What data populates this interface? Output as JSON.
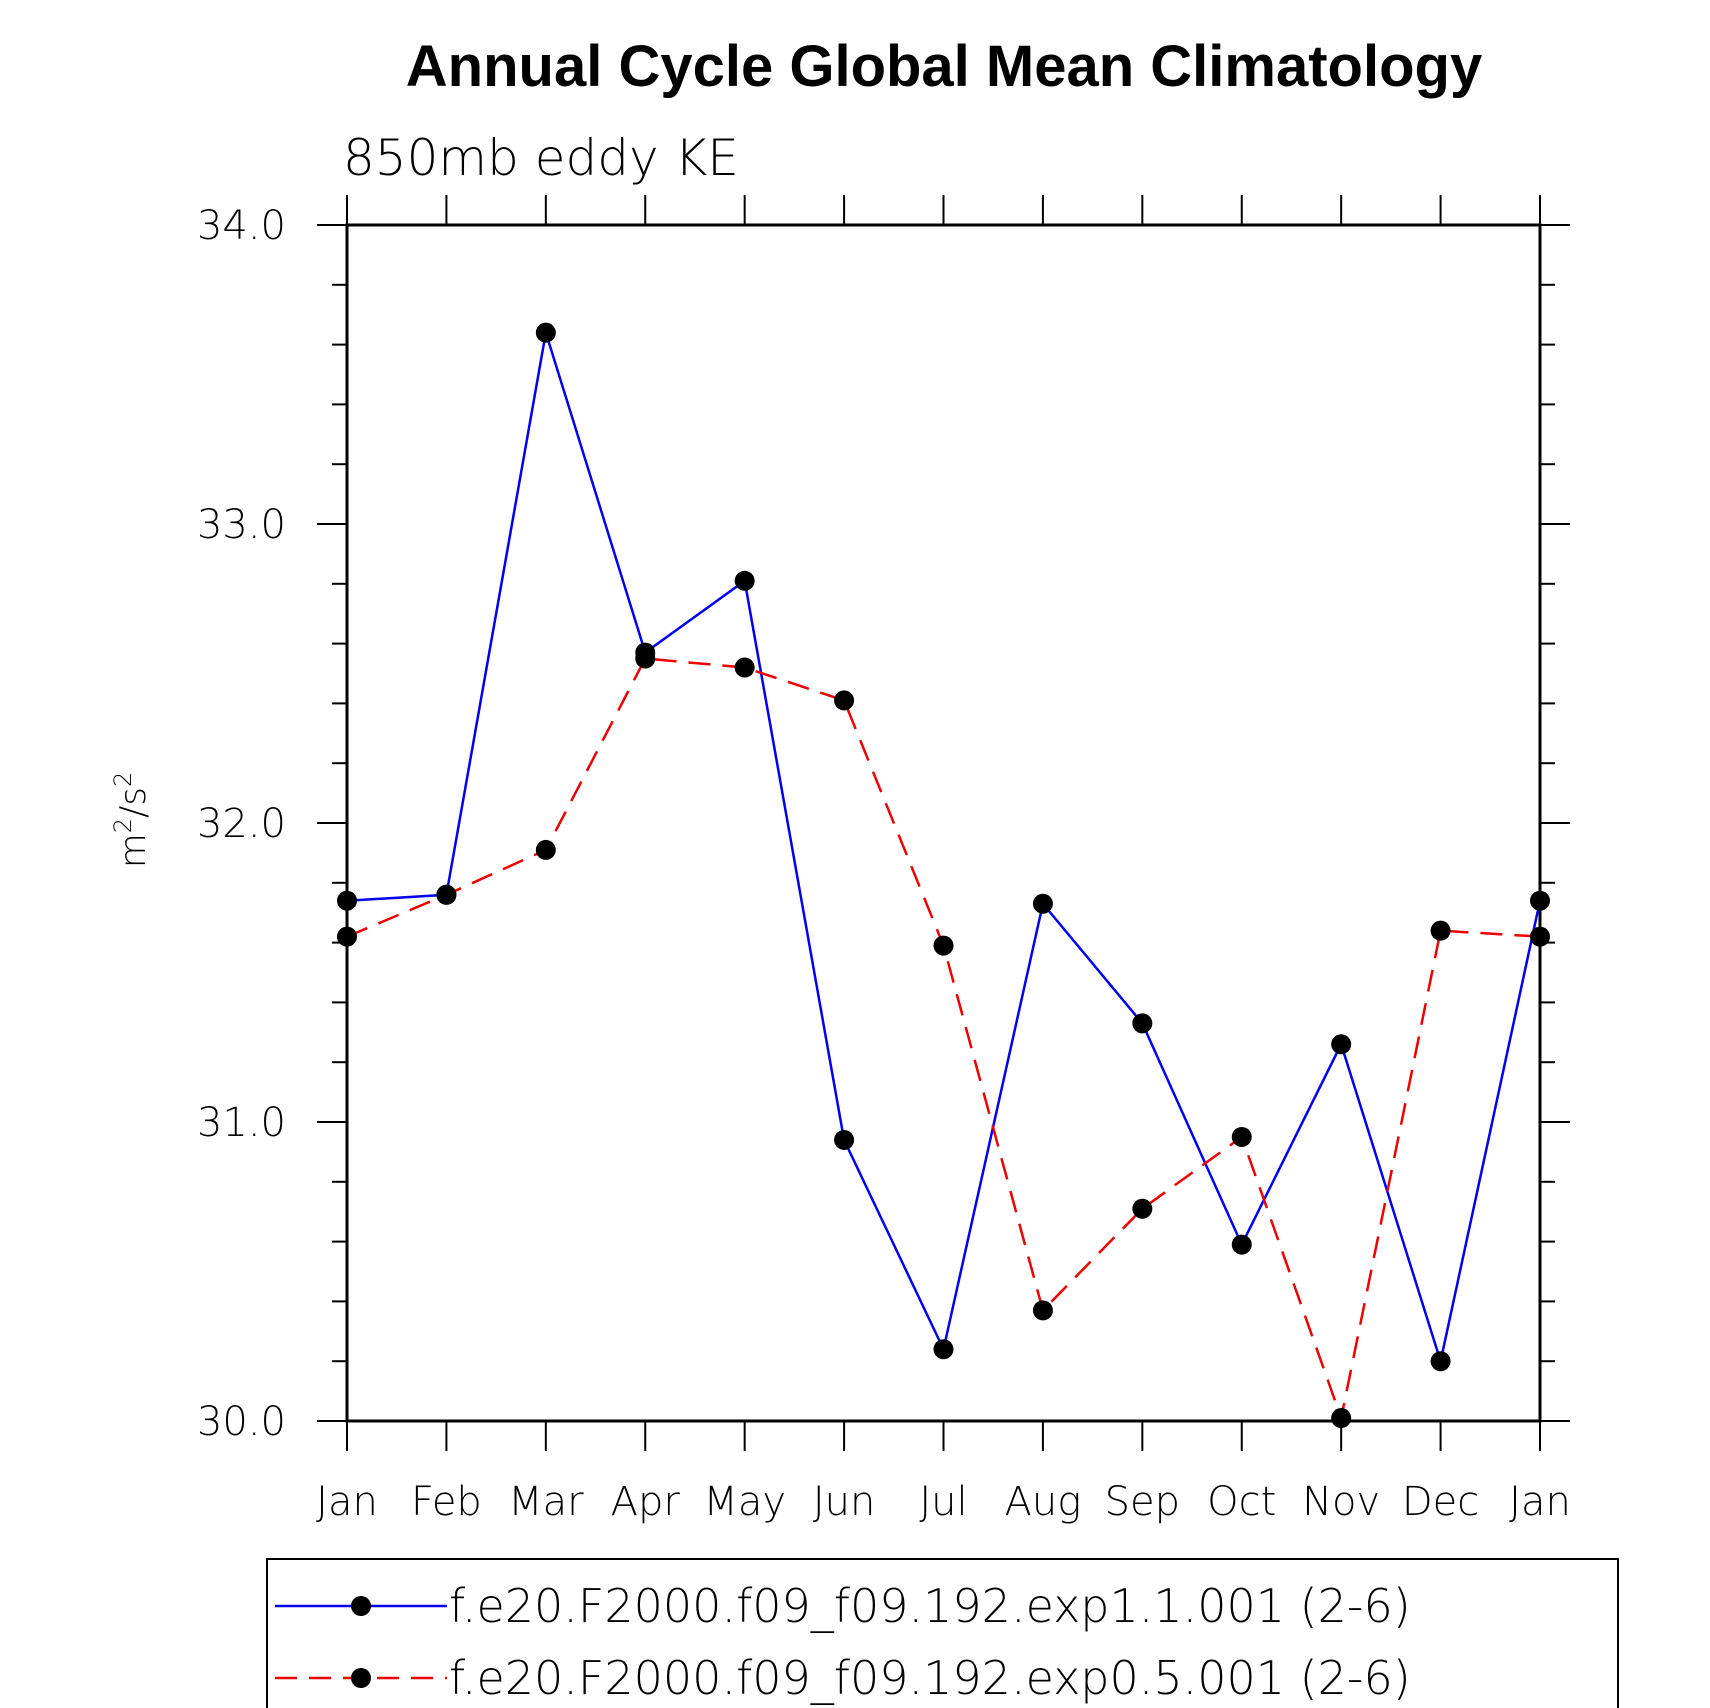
{
  "chart_data": {
    "type": "line",
    "title": "Annual Cycle Global Mean Climatology",
    "subtitle": "850mb eddy KE",
    "ylabel_base": "m",
    "ylabel_sup1": "2",
    "ylabel_mid": "/s",
    "ylabel_sup2": "2",
    "ylim": [
      30.0,
      34.0
    ],
    "yticks": [
      "30.0",
      "31.0",
      "32.0",
      "33.0",
      "34.0"
    ],
    "categories": [
      "Jan",
      "Feb",
      "Mar",
      "Apr",
      "May",
      "Jun",
      "Jul",
      "Aug",
      "Sep",
      "Oct",
      "Nov",
      "Dec",
      "Jan"
    ],
    "series": [
      {
        "name": "f.e20.F2000.f09_f09.192.exp1.1.001 (2-6)",
        "color": "#0000ee",
        "dash": "solid",
        "values": [
          31.74,
          31.76,
          33.64,
          32.57,
          32.81,
          30.94,
          30.24,
          31.73,
          31.33,
          30.59,
          31.26,
          30.2,
          31.74
        ]
      },
      {
        "name": "f.e20.F2000.f09_f09.192.exp0.5.001 (2-6)",
        "color": "#ee0000",
        "dash": "dashed",
        "values": [
          31.62,
          31.76,
          31.91,
          32.55,
          32.52,
          32.41,
          31.59,
          30.37,
          30.71,
          30.95,
          30.01,
          31.64,
          31.62
        ]
      }
    ]
  }
}
